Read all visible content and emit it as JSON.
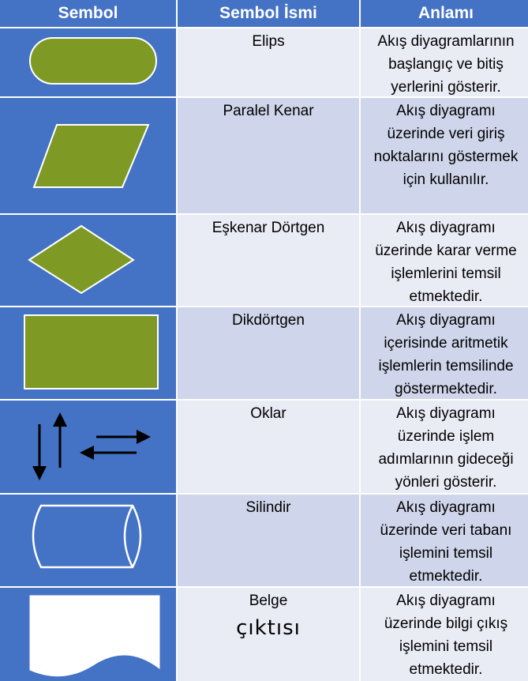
{
  "header": {
    "symbol": "Sembol",
    "name": "Sembol İsmi",
    "meaning": "Anlamı"
  },
  "rows": [
    {
      "icon": "rounded-rectangle-icon",
      "name": "Elips",
      "meaning": "Akış diyagramlarının başlangıç ve bitiş yerlerini gösterir."
    },
    {
      "icon": "parallelogram-icon",
      "name": "Paralel Kenar",
      "meaning": "Akış diyagramı üzerinde veri giriş noktalarını göstermek için kullanılır."
    },
    {
      "icon": "diamond-icon",
      "name": "Eşkenar Dörtgen",
      "meaning": "Akış diyagramı üzerinde karar verme işlemlerini temsil etmektedir."
    },
    {
      "icon": "rectangle-icon",
      "name": "Dikdörtgen",
      "meaning": "Akış diyagramı içerisinde aritmetik işlemlerin temsilinde göstermektedir."
    },
    {
      "icon": "arrows-icon",
      "name": "Oklar",
      "meaning": "Akış diyagramı üzerinde işlem adımlarının gideceği yönleri gösterir."
    },
    {
      "icon": "cylinder-icon",
      "name": "Silindir",
      "meaning": "Akış diyagramı üzerinde veri tabanı işlemini temsil etmektedir."
    },
    {
      "icon": "document-icon",
      "name": "Belge",
      "name_extra": "çıktısı",
      "meaning": "Akış diyagramı üzerinde bilgi çıkış işlemini temsil etmektedir."
    }
  ],
  "colors": {
    "header": "#4472c4",
    "shape_fill": "#7f9a24",
    "row_odd": "#cfd5ea",
    "row_even": "#e9ebf5"
  }
}
